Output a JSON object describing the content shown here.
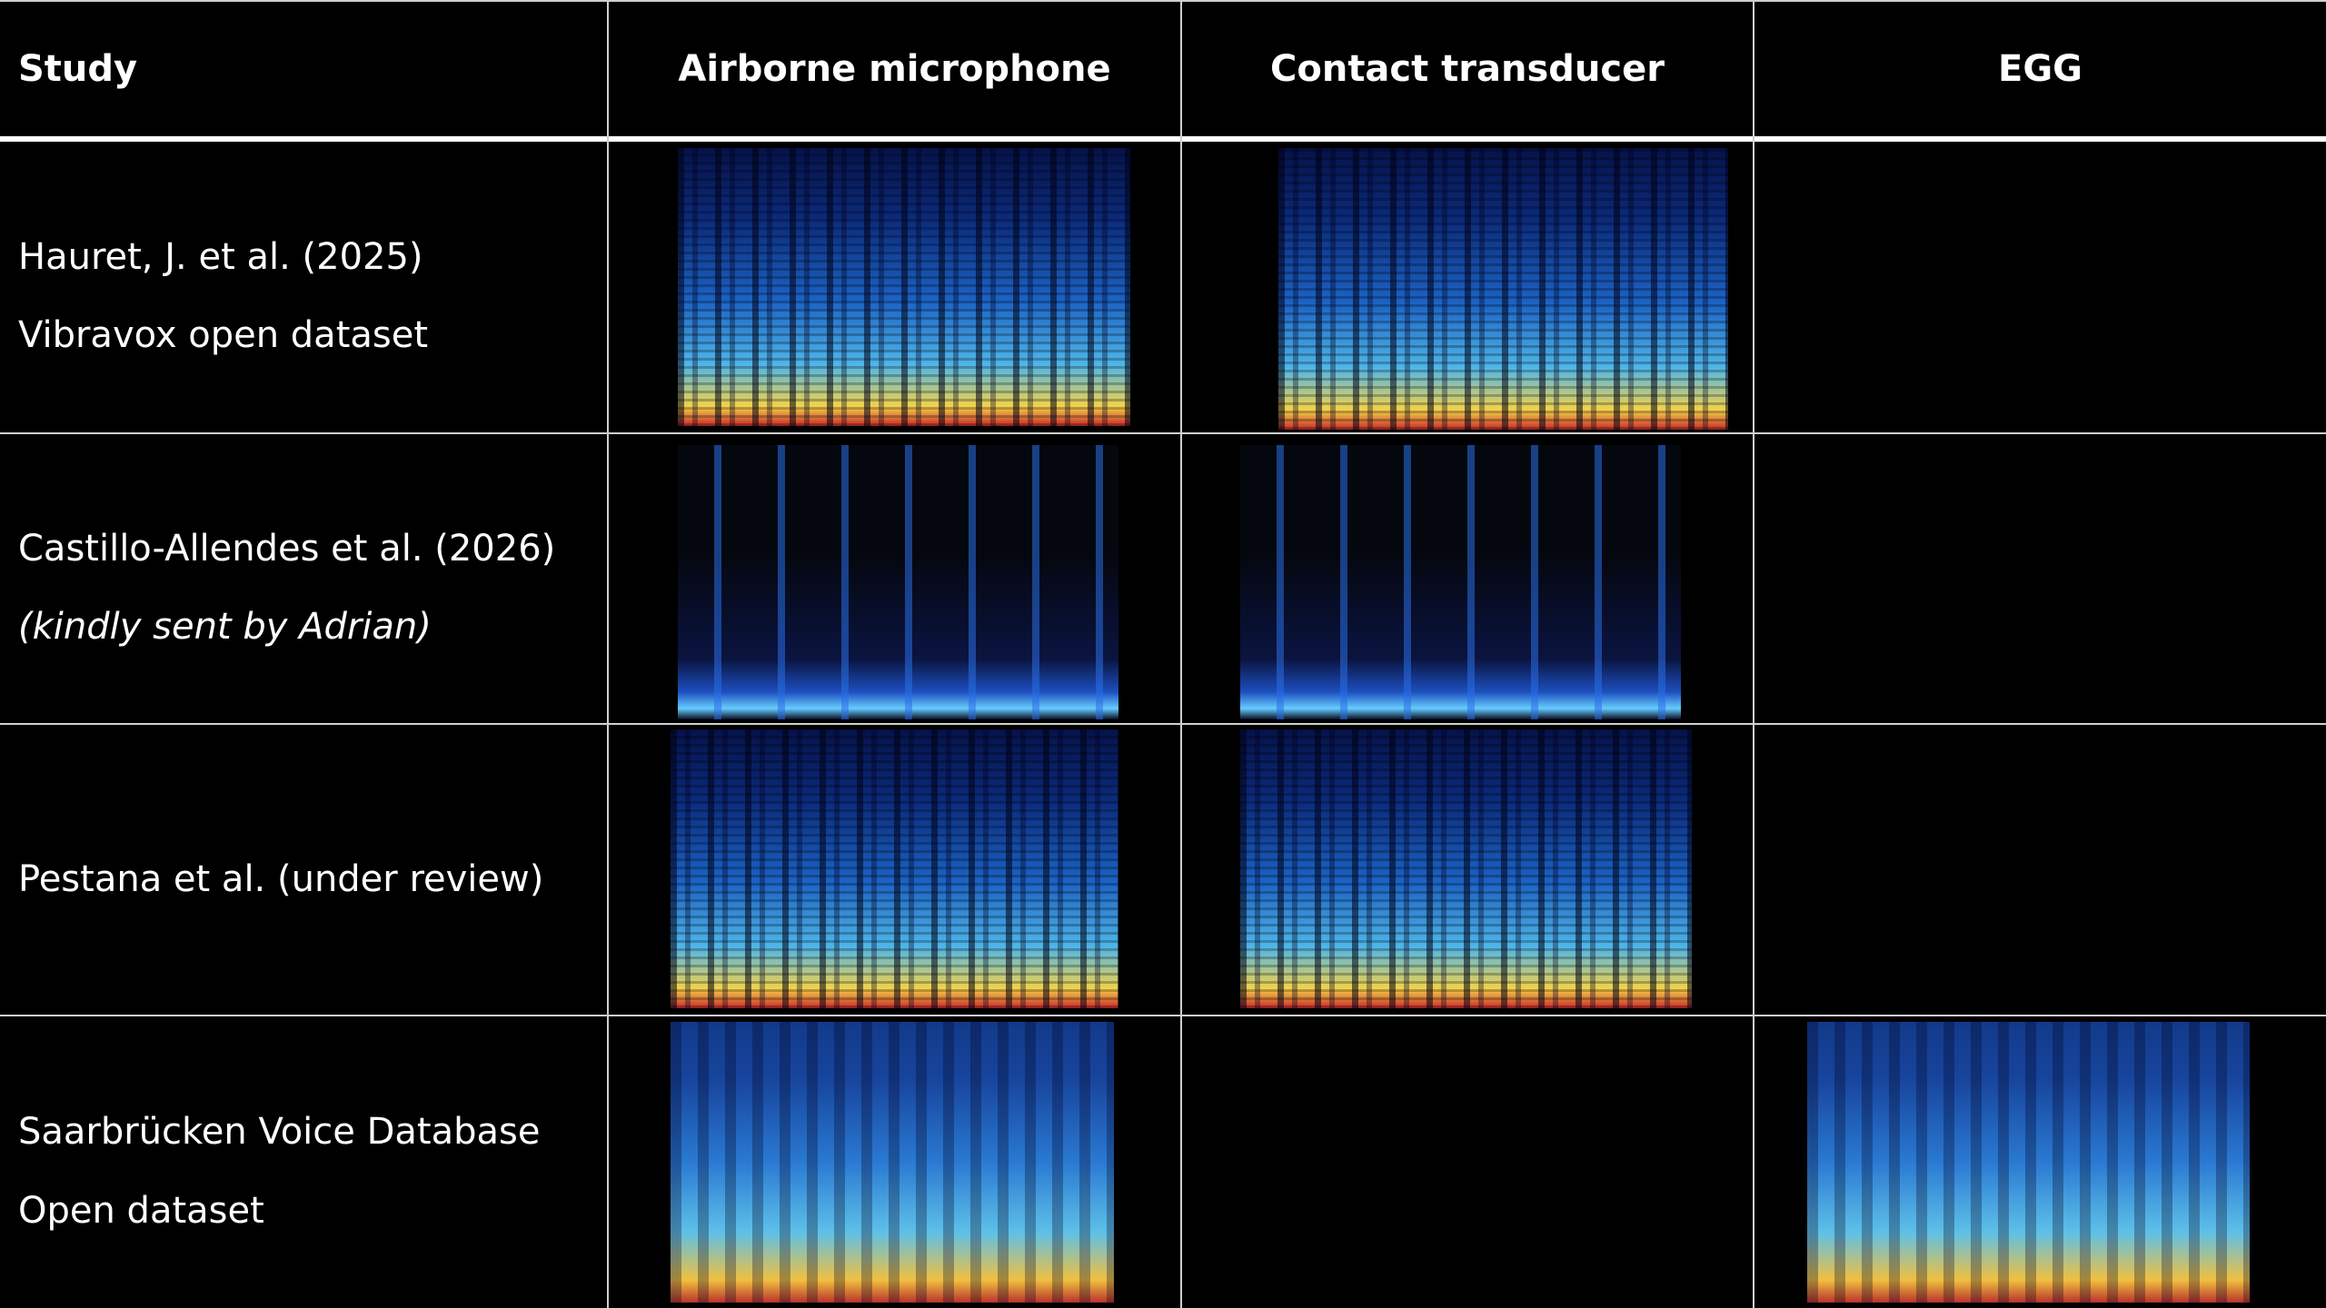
{
  "table": {
    "header": [
      "Study",
      "Airborne microphone",
      "Contact transducer",
      "EGG"
    ],
    "rows": [
      {
        "study": [
          "Hauret, J. et al. (2025)",
          "Vibravox open dataset"
        ]
      },
      {
        "study": [
          "Castillo-Allendes et al. (2026)",
          "(kindly sent by Adrian)"
        ]
      },
      {
        "study": [
          "Pestana et al. (under review)"
        ]
      },
      {
        "study": [
          "Saarbrücken Voice Database",
          "Open dataset"
        ]
      }
    ]
  }
}
